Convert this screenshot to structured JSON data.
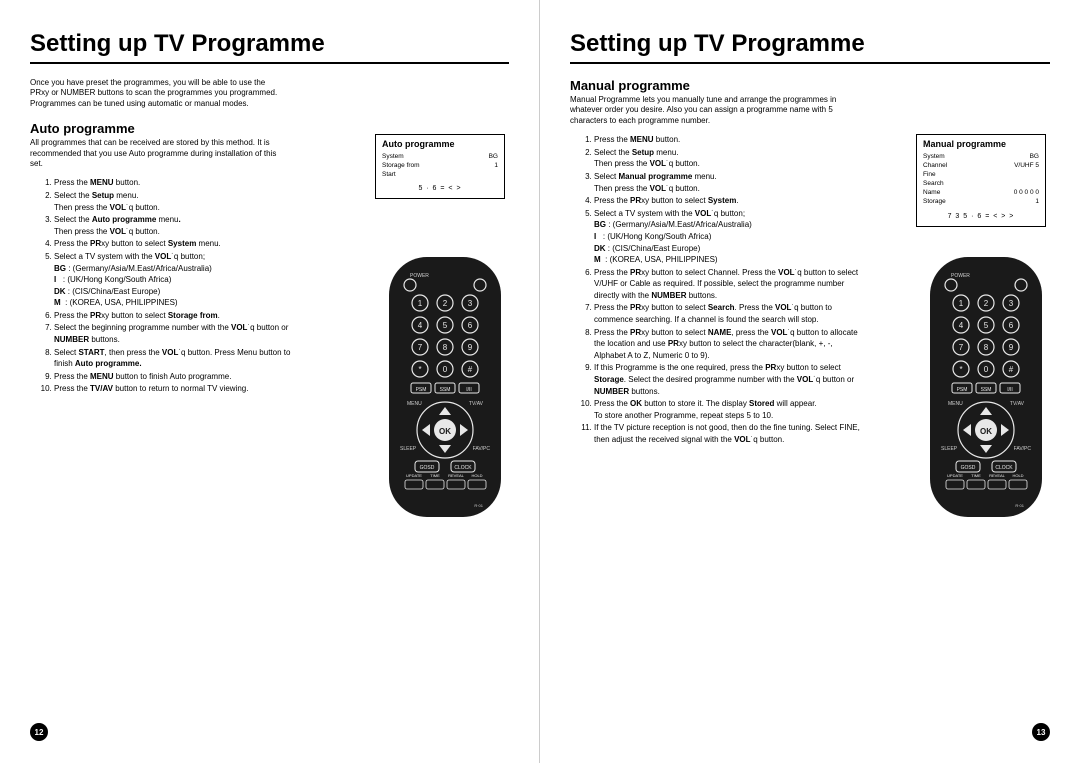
{
  "page_left": {
    "number": "12",
    "title": "Setting up TV Programme",
    "intro": "Once you have preset the programmes, you will be able to use the PRxy or NUMBER buttons to scan the programmes you programmed.\nProgrammes can be tuned using automatic or manual modes.",
    "section_title": "Auto programme",
    "section_sub": "All programmes that can be received are stored by this method. It is recommended that you use Auto programme during installation of this set.",
    "osd": {
      "title": "Auto programme",
      "rows": [
        [
          "System",
          "BG"
        ],
        [
          "Storage from",
          "1"
        ],
        [
          "Start",
          ""
        ]
      ],
      "foot": "5 · 6 =  <  >"
    },
    "steps": [
      "Press the <b>MENU</b> button.",
      "Select the <b>Setup</b> menu.<br>Then press the <b>VOL</b>˙q button.",
      "Select the <b>Auto programme</b> menu<b>.</b><br>Then press the <b>VOL</b>˙q button.",
      "Press the <b>PR</b>xy button to select <b>System</b> menu.",
      "Select a TV system with the <b>VOL</b>˙q button;<br><b>BG</b> : (Germany/Asia/M.East/Africa/Australia)<br><b>I</b>&nbsp;&nbsp;&nbsp;: (UK/Hong Kong/South Africa)<br><b>DK</b> : (CIS/China/East Europe)<br><b>M</b>&nbsp;&nbsp;: (KOREA, USA, PHILIPPINES)",
      "Press the <b>PR</b>xy button to select <b>Storage from</b>.",
      "Select the beginning programme number with the <b>VOL</b>˙q button or <b>NUMBER</b> buttons.",
      "Select <b>START</b>, then press the <b>VOL</b>˙q button. Press Menu button to finish <b>Auto programme.</b>",
      "Press the <b>MENU</b> button to finish Auto programme.",
      "Press the <b>TV/AV</b> button to return to normal TV viewing."
    ]
  },
  "page_right": {
    "number": "13",
    "title": "Setting up TV Programme",
    "section_title": "Manual programme",
    "section_sub": "Manual Programme lets you manually tune and arrange the programmes in whatever order you desire. Also you can assign a programme name with 5 characters to each programme number.",
    "osd": {
      "title": "Manual programme",
      "rows": [
        [
          "System",
          "BG"
        ],
        [
          "Channel",
          "V/UHF    5"
        ],
        [
          "Fine",
          ""
        ],
        [
          "Search",
          ""
        ],
        [
          "Name",
          "0 0 0 0 0"
        ],
        [
          "Storage",
          "1"
        ]
      ],
      "foot": "7 3  5 · 6 =  <  >  >"
    },
    "steps": [
      "Press the <b>MENU</b> button.",
      "Select the <b>Setup</b> menu.<br>Then press the <b>VOL</b>˙q button.",
      "Select <b>Manual programme</b> menu.<br>Then press the <b>VOL</b>˙q button.",
      "Press the <b>PR</b>xy button to select <b>System</b>.",
      "Select a TV system with the <b>VOL</b>˙q button;<br><b>BG</b> : (Germany/Asia/M.East/Africa/Australia)<br><b>I</b>&nbsp;&nbsp;&nbsp;: (UK/Hong Kong/South Africa)<br><b>DK</b> : (CIS/China/East Europe)<br><b>M</b>&nbsp;&nbsp;: (KOREA, USA, PHILIPPINES)",
      "Press the <b>PR</b>xy button to select Channel. Press the <b>VOL</b>˙q button to select V/UHF or Cable as required. If possible, select the programme number directly with the <b>NUMBER</b> buttons.",
      "Press the <b>PR</b>xy button to select <b>Search</b>. Press the <b>VOL</b>˙q button to commence searching. If a channel is found the search will stop.",
      "Press the <b>PR</b>xy button to select <b>NAME</b>, press the <b>VOL</b>˙q button to allocate the location and use <b>PR</b>xy button to select the character(blank, +, -, Alphabet A to Z, Numeric 0 to 9).",
      "If this Programme is the one required, press the <b>PR</b>xy button to select <b>Storage</b>. Select the desired programme number with the <b>VOL</b>˙q button or <b>NUMBER</b> buttons.",
      "Press the <b>OK</b> button to store it. The display <b>Stored</b> will appear.<br>To store another Programme, repeat steps 5 to 10.",
      "If the TV picture reception is not good, then do the fine tuning. Select FINE, then adjust the received signal with the <b>VOL</b>˙q button."
    ]
  },
  "remote": {
    "body_fill": "#1a1a1a",
    "body_rx": 38,
    "button_fill": "#e8e8e8",
    "button_stroke": "#555",
    "text_fill": "#cfcfcf",
    "ok_text": "OK",
    "labels": {
      "power": "POWER",
      "menu": "MENU",
      "tvav": "TV/AV",
      "sleep": "SLEEP",
      "favpc": "FAV/PC",
      "gosd": "GOSD",
      "clock": "CLOCK",
      "psm": "PSM",
      "ssm": "SSM",
      "ix": "I/II",
      "bottom": [
        "UPDATE",
        "TIME",
        "REVEAL",
        "HOLD"
      ]
    },
    "num_rows": [
      [
        "1",
        "2",
        "3"
      ],
      [
        "4",
        "5",
        "6"
      ],
      [
        "7",
        "8",
        "9"
      ],
      [
        "*",
        "0",
        "#"
      ]
    ]
  }
}
